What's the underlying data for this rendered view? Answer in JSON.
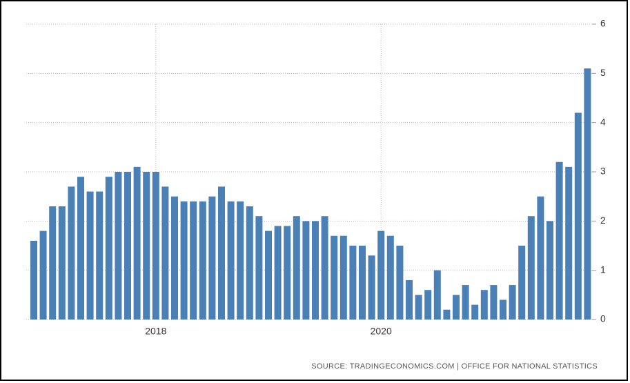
{
  "chart_data": {
    "type": "bar",
    "source": "SOURCE: TRADINGECONOMICS.COM | OFFICE FOR NATIONAL STATISTICS",
    "categories": [
      null,
      null,
      null,
      null,
      null,
      null,
      null,
      null,
      null,
      null,
      null,
      null,
      null,
      "2018",
      null,
      null,
      null,
      null,
      null,
      null,
      null,
      null,
      null,
      null,
      null,
      null,
      null,
      null,
      null,
      null,
      null,
      null,
      null,
      null,
      null,
      null,
      null,
      "2020",
      null,
      null,
      null,
      null,
      null,
      null,
      null,
      null,
      null,
      null,
      null,
      null,
      null,
      null,
      null,
      null,
      null,
      null,
      null,
      null,
      null,
      null
    ],
    "values": [
      1.6,
      1.8,
      2.3,
      2.3,
      2.7,
      2.9,
      2.6,
      2.6,
      2.9,
      3.0,
      3.0,
      3.1,
      3.0,
      3.0,
      2.7,
      2.5,
      2.4,
      2.4,
      2.4,
      2.5,
      2.7,
      2.4,
      2.4,
      2.3,
      2.1,
      1.8,
      1.9,
      1.9,
      2.1,
      2.0,
      2.0,
      2.1,
      1.7,
      1.7,
      1.5,
      1.5,
      1.3,
      1.8,
      1.7,
      1.5,
      0.8,
      0.5,
      0.6,
      1.0,
      0.2,
      0.5,
      0.7,
      0.3,
      0.6,
      0.7,
      0.4,
      0.7,
      1.5,
      2.1,
      2.5,
      2.0,
      3.2,
      3.1,
      4.2,
      5.1
    ],
    "color": "#4a80b6",
    "ylim": [
      0,
      6
    ],
    "yticks": [
      0,
      1,
      2,
      3,
      4,
      5,
      6
    ],
    "grid": true,
    "y_axis_side": "right"
  }
}
